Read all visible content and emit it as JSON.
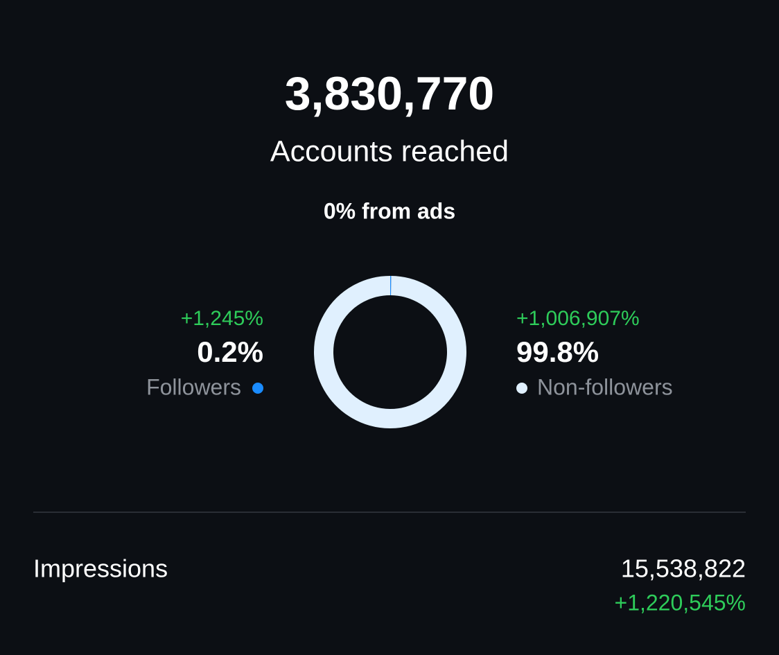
{
  "summary": {
    "total": "3,830,770",
    "label": "Accounts reached",
    "ads": "0% from ads"
  },
  "chart_data": {
    "type": "donut",
    "categories": [
      "Followers",
      "Non-followers"
    ],
    "values": [
      0.2,
      99.8
    ],
    "value_labels": [
      "0.2%",
      "99.8%"
    ],
    "changes": [
      "+1,245%",
      "+1,006,907%"
    ],
    "colors": [
      "#1a8cff",
      "#e0f0fe"
    ]
  },
  "impressions": {
    "label": "Impressions",
    "value": "15,538,822",
    "change": "+1,220,545%"
  }
}
